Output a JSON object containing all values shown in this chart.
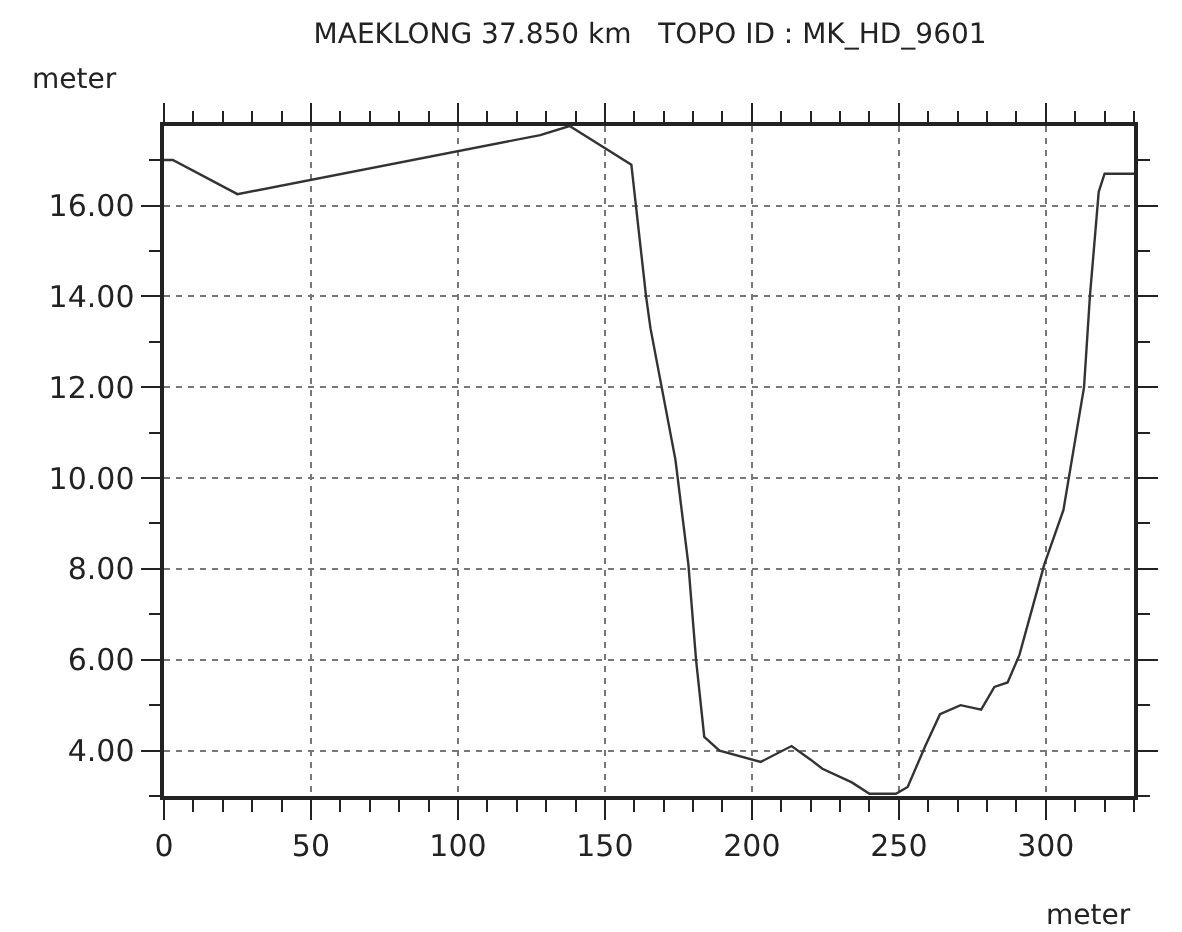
{
  "chart_data": {
    "type": "line",
    "title": "MAEKLONG 37.850 km   TOPO ID : MK_HD_9601",
    "xlabel": "meter",
    "ylabel": "meter",
    "x": [
      0,
      3,
      25,
      128,
      138,
      159,
      164,
      165.5,
      174,
      178.4,
      181,
      183.8,
      189,
      203,
      213.5,
      220,
      224,
      234,
      240,
      249,
      253,
      259,
      264,
      271,
      278,
      282.5,
      287,
      291,
      299.5,
      306,
      313,
      315,
      318,
      320,
      330
    ],
    "series": [
      {
        "color": "#333333",
        "values": [
          17.0,
          17.0,
          16.25,
          17.55,
          17.75,
          16.9,
          14.0,
          13.3,
          10.4,
          8.1,
          6.0,
          4.3,
          4.0,
          3.75,
          4.1,
          3.8,
          3.6,
          3.3,
          3.05,
          3.05,
          3.2,
          4.1,
          4.8,
          5.0,
          4.9,
          5.4,
          5.5,
          6.1,
          8.1,
          9.3,
          12.0,
          14.0,
          16.3,
          16.7,
          16.7
        ]
      }
    ],
    "xlim": [
      0,
      330
    ],
    "ylim": [
      3,
      17.75
    ],
    "xticks": [
      0,
      50,
      100,
      150,
      200,
      250,
      300
    ],
    "yticks": [
      {
        "value": 4,
        "label": "4.00"
      },
      {
        "value": 6,
        "label": "6.00"
      },
      {
        "value": 8,
        "label": "8.00"
      },
      {
        "value": 10,
        "label": "10.00"
      },
      {
        "value": 12,
        "label": "12.00"
      },
      {
        "value": 14,
        "label": "14.00"
      },
      {
        "value": 16,
        "label": "16.00"
      }
    ],
    "grid": true,
    "marker": "none",
    "line_style": "solid"
  }
}
